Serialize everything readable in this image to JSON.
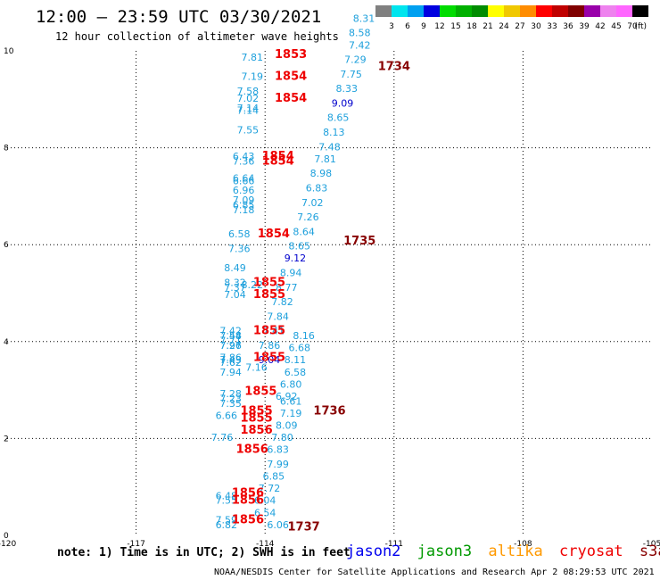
{
  "header": {
    "title": "12:00 – 23:59 UTC 03/30/2021",
    "subtitle": "12 hour collection of altimeter wave heights"
  },
  "colorbar": {
    "unit": "(ft)",
    "labels": [
      "3",
      "6",
      "9",
      "12",
      "15",
      "18",
      "21",
      "24",
      "27",
      "30",
      "33",
      "36",
      "39",
      "42",
      "45",
      "70"
    ],
    "colors": [
      "#808080",
      "#00e5ee",
      "#00a0f0",
      "#0000e0",
      "#00dc00",
      "#00b000",
      "#008c00",
      "#ffff00",
      "#f0c800",
      "#ff8c00",
      "#ff0000",
      "#c00000",
      "#800000",
      "#9900aa",
      "#ee82ee",
      "#ff66ff",
      "#000000"
    ]
  },
  "note": "note: 1) Time is in UTC; 2) SWH is in feet",
  "legend": [
    {
      "label": "jason2",
      "color": "#0000ee"
    },
    {
      "label": "jason3",
      "color": "#009900"
    },
    {
      "label": "altika",
      "color": "#ff9900"
    },
    {
      "label": "cryosat",
      "color": "#ee0000"
    },
    {
      "label": "s3a",
      "color": "#880000"
    }
  ],
  "credit": "NOAA/NESDIS Center for Satellite Applications and Research   Apr  2 08:29:53 UTC 2021",
  "chart_data": {
    "type": "scatter",
    "xlim": [
      -120,
      -105
    ],
    "ylim": [
      0,
      10
    ],
    "xticks": [
      "-120",
      "-117",
      "-114",
      "-111",
      "-108",
      "-105"
    ],
    "yticks": [
      "0",
      "2",
      "4",
      "6",
      "8",
      "10"
    ],
    "grid": true,
    "colors": {
      "swh": "#1ea0dc",
      "swh_dark": "#0000cc",
      "time_red": "#ee0000",
      "time_dark": "#880000"
    },
    "swh_points": [
      {
        "x": -114.3,
        "y": 9.8,
        "v": "7.81"
      },
      {
        "x": -114.3,
        "y": 9.4,
        "v": "7.19"
      },
      {
        "x": -114.4,
        "y": 9.1,
        "v": "7.58"
      },
      {
        "x": -114.4,
        "y": 8.95,
        "v": "7.02"
      },
      {
        "x": -114.4,
        "y": 8.75,
        "v": "7.14"
      },
      {
        "x": -114.4,
        "y": 8.7,
        "v": "7.14"
      },
      {
        "x": -114.4,
        "y": 8.3,
        "v": "7.55"
      },
      {
        "x": -114.5,
        "y": 7.75,
        "v": "6.43"
      },
      {
        "x": -114.5,
        "y": 7.65,
        "v": "7.36"
      },
      {
        "x": -114.5,
        "y": 7.3,
        "v": "6.64"
      },
      {
        "x": -114.5,
        "y": 7.25,
        "v": "6.66"
      },
      {
        "x": -114.5,
        "y": 7.05,
        "v": "6.96"
      },
      {
        "x": -114.5,
        "y": 6.85,
        "v": "7.09"
      },
      {
        "x": -114.5,
        "y": 6.75,
        "v": "6.85"
      },
      {
        "x": -114.5,
        "y": 6.65,
        "v": "7.18"
      },
      {
        "x": -114.6,
        "y": 6.15,
        "v": "6.58"
      },
      {
        "x": -114.6,
        "y": 5.85,
        "v": "7.36"
      },
      {
        "x": -114.7,
        "y": 5.45,
        "v": "8.49"
      },
      {
        "x": -114.7,
        "y": 5.15,
        "v": "8.32"
      },
      {
        "x": -114.7,
        "y": 5.05,
        "v": "7.37"
      },
      {
        "x": -114.7,
        "y": 4.9,
        "v": "7.04"
      },
      {
        "x": -114.8,
        "y": 4.15,
        "v": "7.42"
      },
      {
        "x": -114.8,
        "y": 4.05,
        "v": "7.44"
      },
      {
        "x": -114.8,
        "y": 3.85,
        "v": "7.26"
      },
      {
        "x": -114.8,
        "y": 3.6,
        "v": "7.86"
      },
      {
        "x": -114.8,
        "y": 3.5,
        "v": "7.62"
      },
      {
        "x": -114.2,
        "y": 3.4,
        "v": "7.16"
      },
      {
        "x": -113.9,
        "y": 3.55,
        "v": "9.04",
        "dark": true
      },
      {
        "x": -113.9,
        "y": 3.85,
        "v": "7.86"
      },
      {
        "x": -113.8,
        "y": 4.15,
        "v": "7.41"
      },
      {
        "x": -113.7,
        "y": 4.45,
        "v": "7.84"
      },
      {
        "x": -113.6,
        "y": 4.75,
        "v": "7.82"
      },
      {
        "x": -113.5,
        "y": 5.05,
        "v": "8.77"
      },
      {
        "x": -113.4,
        "y": 5.35,
        "v": "8.94"
      },
      {
        "x": -113.3,
        "y": 5.65,
        "v": "9.12",
        "dark": true
      },
      {
        "x": -113.2,
        "y": 5.9,
        "v": "8.65"
      },
      {
        "x": -113.1,
        "y": 6.2,
        "v": "8.64"
      },
      {
        "x": -113.0,
        "y": 6.5,
        "v": "7.26"
      },
      {
        "x": -112.9,
        "y": 6.8,
        "v": "7.02"
      },
      {
        "x": -112.8,
        "y": 7.1,
        "v": "6.83"
      },
      {
        "x": -112.7,
        "y": 7.4,
        "v": "8.98"
      },
      {
        "x": -112.6,
        "y": 7.7,
        "v": "7.81"
      },
      {
        "x": -112.5,
        "y": 7.95,
        "v": "7.48"
      },
      {
        "x": -112.4,
        "y": 8.25,
        "v": "8.13"
      },
      {
        "x": -112.3,
        "y": 8.55,
        "v": "8.65"
      },
      {
        "x": -112.2,
        "y": 8.85,
        "v": "9.09",
        "dark": true
      },
      {
        "x": -112.1,
        "y": 9.15,
        "v": "8.33"
      },
      {
        "x": -112.0,
        "y": 9.45,
        "v": "7.75"
      },
      {
        "x": -111.9,
        "y": 9.75,
        "v": "7.29"
      },
      {
        "x": -111.8,
        "y": 10.05,
        "v": "7.42"
      },
      {
        "x": -111.8,
        "y": 10.3,
        "v": "8.58"
      },
      {
        "x": -111.7,
        "y": 10.6,
        "v": "8.31"
      },
      {
        "x": -114.3,
        "y": 5.1,
        "v": "8.22"
      },
      {
        "x": -113.7,
        "y": 0.15,
        "v": "6.06"
      },
      {
        "x": -114.0,
        "y": 0.4,
        "v": "6.54"
      },
      {
        "x": -114.0,
        "y": 0.65,
        "v": "6.04"
      },
      {
        "x": -114.9,
        "y": 0.25,
        "v": "7.59"
      },
      {
        "x": -114.9,
        "y": 0.15,
        "v": "6.82"
      },
      {
        "x": -114.9,
        "y": 0.65,
        "v": "7.55"
      },
      {
        "x": -114.9,
        "y": 0.75,
        "v": "6.48"
      },
      {
        "x": -115.0,
        "y": 1.95,
        "v": "7.76"
      },
      {
        "x": -114.9,
        "y": 2.4,
        "v": "6.66"
      },
      {
        "x": -114.8,
        "y": 2.65,
        "v": "7.35"
      },
      {
        "x": -114.8,
        "y": 2.75,
        "v": "7.23"
      },
      {
        "x": -114.8,
        "y": 2.85,
        "v": "7.28"
      },
      {
        "x": -114.8,
        "y": 3.3,
        "v": "7.94"
      },
      {
        "x": -114.8,
        "y": 3.55,
        "v": "7.43"
      },
      {
        "x": -114.8,
        "y": 3.85,
        "v": "7.97"
      },
      {
        "x": -114.8,
        "y": 3.95,
        "v": "7.71"
      },
      {
        "x": -114.8,
        "y": 4.05,
        "v": "7.58"
      },
      {
        "x": -113.9,
        "y": 0.9,
        "v": "7.72"
      },
      {
        "x": -113.8,
        "y": 1.15,
        "v": "6.85"
      },
      {
        "x": -113.7,
        "y": 1.4,
        "v": "7.99"
      },
      {
        "x": -113.7,
        "y": 1.7,
        "v": "6.83"
      },
      {
        "x": -113.6,
        "y": 1.95,
        "v": "7.80"
      },
      {
        "x": -113.5,
        "y": 2.2,
        "v": "8.09"
      },
      {
        "x": -113.4,
        "y": 2.45,
        "v": "7.19"
      },
      {
        "x": -113.4,
        "y": 2.7,
        "v": "6.61"
      },
      {
        "x": -113.5,
        "y": 2.8,
        "v": "6.92"
      },
      {
        "x": -113.4,
        "y": 3.05,
        "v": "6.80"
      },
      {
        "x": -113.3,
        "y": 3.3,
        "v": "6.58"
      },
      {
        "x": -113.3,
        "y": 3.55,
        "v": "8.11"
      },
      {
        "x": -113.2,
        "y": 3.8,
        "v": "6.68"
      },
      {
        "x": -113.1,
        "y": 4.05,
        "v": "8.16"
      }
    ],
    "time_points": [
      {
        "x": -113.4,
        "y": 9.85,
        "v": "1853",
        "dark": false
      },
      {
        "x": -113.4,
        "y": 9.4,
        "v": "1854",
        "dark": false
      },
      {
        "x": -113.4,
        "y": 8.95,
        "v": "1854",
        "dark": false
      },
      {
        "x": -113.7,
        "y": 7.75,
        "v": "1854",
        "dark": false
      },
      {
        "x": -113.7,
        "y": 7.65,
        "v": "1854",
        "dark": false
      },
      {
        "x": -113.8,
        "y": 6.15,
        "v": "1854",
        "dark": false
      },
      {
        "x": -113.9,
        "y": 5.15,
        "v": "1855",
        "dark": false
      },
      {
        "x": -113.9,
        "y": 4.9,
        "v": "1855",
        "dark": false
      },
      {
        "x": -113.9,
        "y": 4.15,
        "v": "1855",
        "dark": false
      },
      {
        "x": -113.9,
        "y": 3.6,
        "v": "1855",
        "dark": false
      },
      {
        "x": -114.1,
        "y": 2.9,
        "v": "1855",
        "dark": false
      },
      {
        "x": -114.2,
        "y": 2.5,
        "v": "1855",
        "dark": false
      },
      {
        "x": -114.2,
        "y": 2.35,
        "v": "1855",
        "dark": false
      },
      {
        "x": -114.2,
        "y": 2.1,
        "v": "1856",
        "dark": false
      },
      {
        "x": -114.3,
        "y": 1.7,
        "v": "1856",
        "dark": false
      },
      {
        "x": -114.4,
        "y": 0.8,
        "v": "1856",
        "dark": false
      },
      {
        "x": -114.4,
        "y": 0.65,
        "v": "1856",
        "dark": false
      },
      {
        "x": -114.4,
        "y": 0.25,
        "v": "1856",
        "dark": false
      },
      {
        "x": -113.1,
        "y": 0.1,
        "v": "1737",
        "dark": true
      },
      {
        "x": -112.5,
        "y": 2.5,
        "v": "1736",
        "dark": true
      },
      {
        "x": -111.8,
        "y": 6.0,
        "v": "1735",
        "dark": true
      },
      {
        "x": -111.0,
        "y": 9.6,
        "v": "1734",
        "dark": true
      }
    ]
  }
}
